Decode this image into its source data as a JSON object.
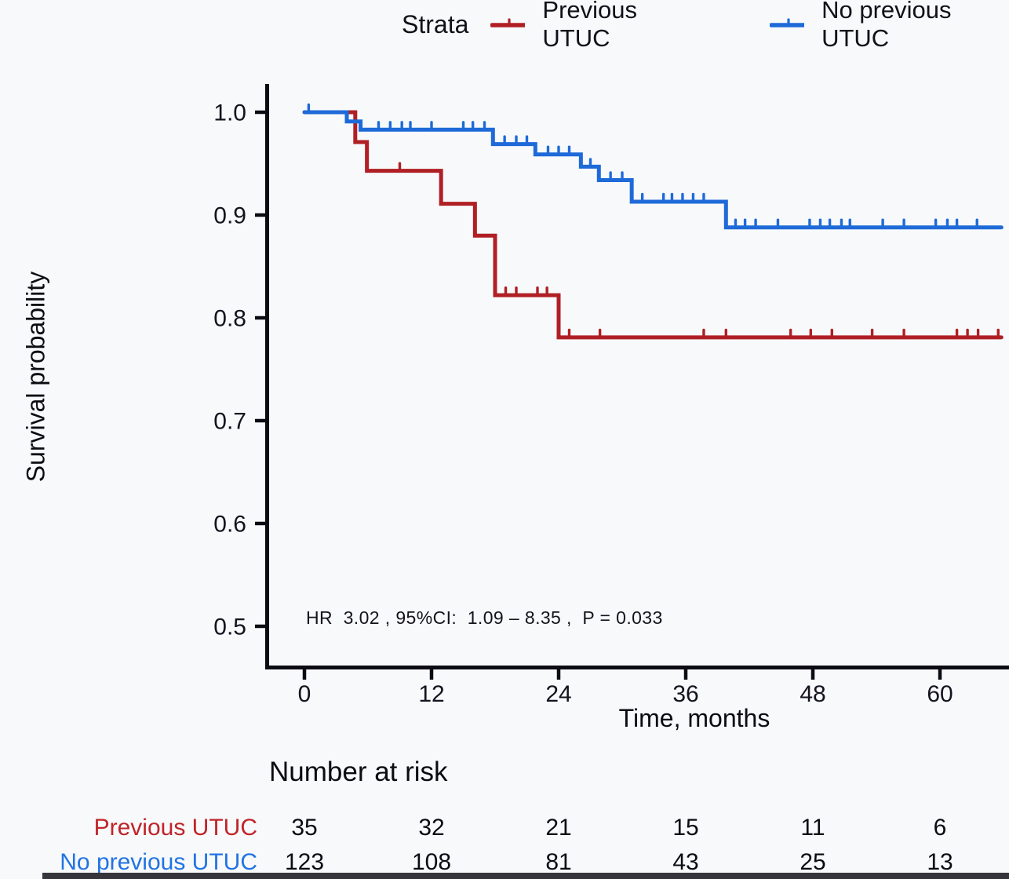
{
  "legend": {
    "title": "Strata",
    "items": [
      {
        "label": "Previous UTUC",
        "color": "#b01f24"
      },
      {
        "label": "No previous UTUC",
        "color": "#1e6ad8"
      }
    ]
  },
  "chart_data": {
    "type": "line",
    "subtype": "kaplan-meier-step-curves",
    "title": "",
    "xlabel": "Time, months",
    "ylabel": "Survival probability",
    "xticks": [
      0,
      12,
      24,
      36,
      48,
      60
    ],
    "yticks": [
      0.5,
      0.6,
      0.7,
      0.8,
      0.9,
      1.0
    ],
    "xlim": [
      0,
      65.8
    ],
    "ylim": [
      0.46,
      1.03
    ],
    "grid": false,
    "legend_position": "top",
    "annotation": "HR  3.02 , 95%CI:  1.09 – 8.35 ,  P = 0.033",
    "series": [
      {
        "name": "Previous UTUC",
        "color": "#b01f24",
        "steps": [
          [
            0,
            1.0
          ],
          [
            4.8,
            0.971
          ],
          [
            5.9,
            0.943
          ],
          [
            12.9,
            0.911
          ],
          [
            16.1,
            0.88
          ],
          [
            18.0,
            0.822
          ],
          [
            24.0,
            0.781
          ]
        ],
        "end_time": 65.8,
        "censors": [
          [
            9.0,
            0.943
          ],
          [
            19.0,
            0.822
          ],
          [
            20.0,
            0.822
          ],
          [
            22.0,
            0.822
          ],
          [
            22.9,
            0.822
          ],
          [
            25.0,
            0.781
          ],
          [
            27.9,
            0.781
          ],
          [
            37.7,
            0.781
          ],
          [
            39.8,
            0.781
          ],
          [
            45.9,
            0.781
          ],
          [
            47.8,
            0.781
          ],
          [
            49.8,
            0.781
          ],
          [
            53.6,
            0.781
          ],
          [
            56.6,
            0.781
          ],
          [
            61.6,
            0.781
          ],
          [
            62.6,
            0.781
          ],
          [
            63.6,
            0.781
          ],
          [
            65.5,
            0.781
          ]
        ]
      },
      {
        "name": "No previous UTUC",
        "color": "#1e6ad8",
        "steps": [
          [
            0,
            1.0
          ],
          [
            4.0,
            0.991
          ],
          [
            5.3,
            0.983
          ],
          [
            17.8,
            0.969
          ],
          [
            21.8,
            0.959
          ],
          [
            26.1,
            0.947
          ],
          [
            27.8,
            0.934
          ],
          [
            30.9,
            0.913
          ],
          [
            39.8,
            0.888
          ]
        ],
        "end_time": 65.8,
        "censors": [
          [
            0.4,
            1.0
          ],
          [
            7.0,
            0.983
          ],
          [
            8.1,
            0.983
          ],
          [
            9.2,
            0.983
          ],
          [
            10.0,
            0.983
          ],
          [
            12.0,
            0.983
          ],
          [
            15.0,
            0.983
          ],
          [
            15.9,
            0.983
          ],
          [
            17.0,
            0.983
          ],
          [
            18.9,
            0.969
          ],
          [
            20.0,
            0.969
          ],
          [
            21.0,
            0.969
          ],
          [
            23.0,
            0.959
          ],
          [
            24.0,
            0.959
          ],
          [
            25.0,
            0.959
          ],
          [
            27.0,
            0.947
          ],
          [
            28.9,
            0.934
          ],
          [
            30.0,
            0.934
          ],
          [
            31.9,
            0.913
          ],
          [
            33.9,
            0.913
          ],
          [
            34.7,
            0.913
          ],
          [
            35.7,
            0.913
          ],
          [
            36.7,
            0.913
          ],
          [
            37.7,
            0.913
          ],
          [
            40.7,
            0.888
          ],
          [
            41.6,
            0.888
          ],
          [
            42.6,
            0.888
          ],
          [
            44.7,
            0.888
          ],
          [
            47.7,
            0.888
          ],
          [
            48.7,
            0.888
          ],
          [
            49.6,
            0.888
          ],
          [
            50.7,
            0.888
          ],
          [
            51.5,
            0.888
          ],
          [
            54.6,
            0.888
          ],
          [
            56.6,
            0.888
          ],
          [
            59.6,
            0.888
          ],
          [
            60.7,
            0.888
          ],
          [
            61.6,
            0.888
          ],
          [
            63.5,
            0.888
          ]
        ]
      }
    ]
  },
  "risk_table": {
    "title": "Number at risk",
    "time_columns": [
      0,
      12,
      24,
      36,
      48,
      60
    ],
    "rows": [
      {
        "label": "Previous UTUC",
        "color": "#c02428",
        "values": [
          "35",
          "32",
          "21",
          "15",
          "11",
          "6"
        ]
      },
      {
        "label": "No previous UTUC",
        "color": "#2273e3",
        "values": [
          "123",
          "108",
          "81",
          "43",
          "25",
          "13"
        ]
      }
    ]
  }
}
